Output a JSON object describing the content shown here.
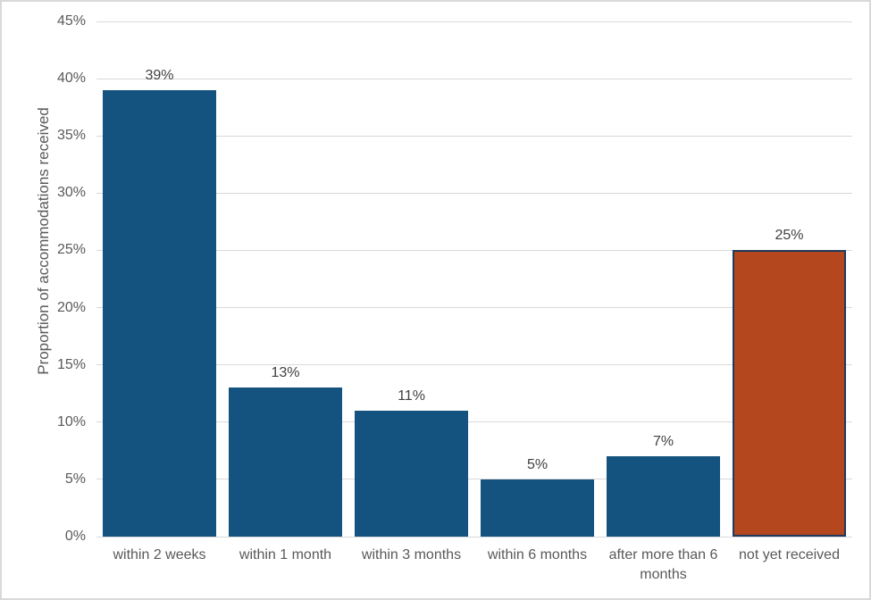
{
  "chart_data": {
    "type": "bar",
    "categories": [
      "within 2 weeks",
      "within 1 month",
      "within 3 months",
      "within 6 months",
      "after more than 6 months",
      "not yet received"
    ],
    "values": [
      39,
      13,
      11,
      5,
      7,
      25
    ],
    "data_labels": [
      "39%",
      "13%",
      "11%",
      "5%",
      "7%",
      "25%"
    ],
    "title": "",
    "xlabel": "",
    "ylabel": "Proportion of accommodations received",
    "ylim": [
      0,
      45
    ],
    "ytick_step": 5,
    "ytick_labels": [
      "0%",
      "5%",
      "10%",
      "15%",
      "20%",
      "25%",
      "30%",
      "35%",
      "40%",
      "45%"
    ],
    "grid": true,
    "legend": false,
    "bar_colors": [
      "#14527F",
      "#14527F",
      "#14527F",
      "#14527F",
      "#14527F",
      "#B4471D"
    ],
    "highlight_index": 5,
    "highlight_border_color": "#1E3A5F",
    "colors": {
      "bar_blue": "#14527F",
      "bar_orange": "#B4471D",
      "gridline": "#D9D9D9",
      "tick_label": "#595959",
      "category_label": "#595959",
      "data_label": "#404040",
      "axis_title": "#595959",
      "chart_border": "#D9D9D9",
      "background": "#FFFFFF"
    }
  }
}
